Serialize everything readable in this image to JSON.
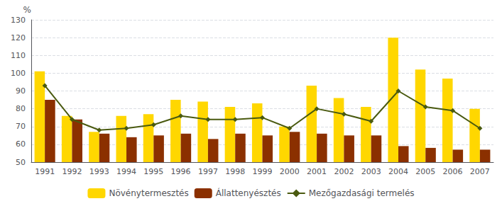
{
  "chart_data": {
    "type": "bar",
    "ylabel": "%",
    "categories": [
      "1991",
      "1992",
      "1993",
      "1994",
      "1995",
      "1996",
      "1997",
      "1998",
      "1999",
      "2000",
      "2001",
      "2002",
      "2003",
      "2004",
      "2005",
      "2006",
      "2007"
    ],
    "series": [
      {
        "name": "Növénytermesztés",
        "type": "bar",
        "color": "#FFD700",
        "values": [
          101,
          76,
          67,
          76,
          77,
          85,
          84,
          81,
          83,
          70,
          93,
          86,
          81,
          120,
          102,
          97,
          80
        ]
      },
      {
        "name": "Állattenyésztés",
        "type": "bar",
        "color": "#8B3000",
        "values": [
          85,
          74,
          66,
          64,
          65,
          66,
          63,
          66,
          65,
          67,
          66,
          65,
          65,
          59,
          58,
          57,
          57
        ]
      },
      {
        "name": "Mezőgazdasági termelés",
        "type": "line",
        "color": "#4A5A10",
        "marker": "diamond",
        "line_style": "solid",
        "values": [
          93,
          74,
          68,
          69,
          71,
          76,
          74,
          74,
          75,
          69,
          80,
          77,
          73,
          90,
          81,
          79,
          69
        ]
      }
    ],
    "ylim": [
      50,
      130
    ],
    "yticks": [
      50,
      60,
      70,
      80,
      90,
      100,
      110,
      120,
      130
    ],
    "grid": true,
    "legend": "bottom"
  }
}
